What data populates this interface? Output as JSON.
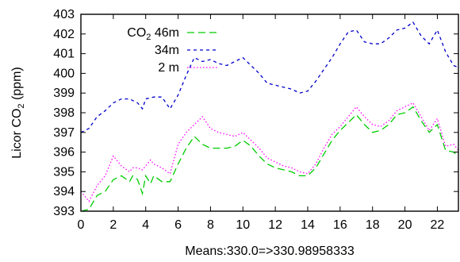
{
  "chart_data": {
    "type": "line",
    "xlabel": "Means:330.0=>330.98958333",
    "ylabel_main": "Licor CO",
    "ylabel_sub": "2",
    "ylabel_unit": " (ppm)",
    "xlim": [
      0,
      23.3
    ],
    "ylim": [
      393,
      403
    ],
    "xticks": [
      0,
      2,
      4,
      6,
      8,
      10,
      12,
      14,
      16,
      18,
      20,
      22
    ],
    "yticks": [
      393,
      394,
      395,
      396,
      397,
      398,
      399,
      400,
      401,
      402,
      403
    ],
    "grid": false,
    "legend_position": "top-left",
    "series": [
      {
        "name": "CO",
        "name_sub": "2",
        "name_rest": " 46m",
        "color": "#00cc00",
        "dash": "long",
        "x": [
          0,
          0.5,
          1,
          1.5,
          2,
          2.5,
          3,
          3.2,
          3.5,
          3.8,
          4,
          4.3,
          4.5,
          5,
          5.5,
          6,
          6.5,
          7,
          7.5,
          8,
          8.5,
          9,
          9.5,
          10,
          10.5,
          11,
          11.5,
          12,
          12.5,
          13,
          13.5,
          14,
          14.5,
          15,
          15.5,
          16,
          16.5,
          17,
          17.5,
          18,
          18.5,
          19,
          19.5,
          20,
          20.5,
          21,
          21.5,
          22,
          22.5,
          23,
          23.3
        ],
        "y": [
          393,
          393.1,
          393.8,
          394,
          394.6,
          394.8,
          394.5,
          394.8,
          394.6,
          393.9,
          394.8,
          394.4,
          394.8,
          394.5,
          394.5,
          395.4,
          396.2,
          396.8,
          396.4,
          396.2,
          396.2,
          396.2,
          396.3,
          396.6,
          396.3,
          395.8,
          395.4,
          395.2,
          395.1,
          395,
          394.8,
          394.8,
          395.2,
          395.9,
          396.6,
          397.1,
          397.5,
          397.9,
          397.4,
          397,
          397.1,
          397.4,
          397.9,
          398,
          398.3,
          397.6,
          397,
          397.4,
          396.1,
          396,
          395.8
        ]
      },
      {
        "name": "34m",
        "color": "#0000cc",
        "dash": "short",
        "x": [
          0,
          0.5,
          1,
          1.5,
          2,
          2.5,
          3,
          3.5,
          3.8,
          4,
          4.5,
          5,
          5.5,
          6,
          6.5,
          7,
          7.5,
          8,
          8.5,
          9,
          9.5,
          10,
          10.5,
          11,
          11.5,
          12,
          12.5,
          13,
          13.5,
          14,
          14.5,
          15,
          15.5,
          16,
          16.5,
          17,
          17.5,
          18,
          18.5,
          19,
          19.5,
          20,
          20.5,
          21,
          21.5,
          22,
          22.5,
          23,
          23.3
        ],
        "y": [
          397,
          397.2,
          397.8,
          398.1,
          398.5,
          398.7,
          398.7,
          398.5,
          398.2,
          398.7,
          398.8,
          398.8,
          398.2,
          398.9,
          399.9,
          400.8,
          400.6,
          400.7,
          400.5,
          400.4,
          400.6,
          400.8,
          400.4,
          400,
          399.5,
          399.4,
          399.3,
          399.2,
          399,
          399.1,
          399.6,
          400.2,
          400.8,
          401.5,
          402.1,
          402.2,
          401.6,
          401.5,
          401.5,
          401.8,
          402.2,
          402.3,
          402.6,
          401.9,
          401.5,
          402.2,
          401.1,
          400.4,
          400.3
        ]
      },
      {
        "name": "2 m",
        "color": "#ff00ff",
        "dash": "dot",
        "x": [
          0,
          0.5,
          1,
          1.5,
          2,
          2.5,
          3,
          3.2,
          3.5,
          3.8,
          4,
          4.3,
          4.5,
          5,
          5.5,
          6,
          6.5,
          7,
          7.5,
          8,
          8.5,
          9,
          9.5,
          10,
          10.5,
          11,
          11.5,
          12,
          12.5,
          13,
          13.5,
          14,
          14.5,
          15,
          15.5,
          16,
          16.5,
          17,
          17.5,
          18,
          18.5,
          19,
          19.5,
          20,
          20.5,
          21,
          21.5,
          22,
          22.5,
          23,
          23.3
        ],
        "y": [
          394,
          393.5,
          394.3,
          394.8,
          395.8,
          395.3,
          395,
          395.2,
          395.2,
          395.1,
          395.3,
          395.6,
          395.4,
          395.2,
          394.9,
          396.4,
          397,
          397.4,
          397.8,
          397.2,
          397,
          396.9,
          396.8,
          397,
          396.6,
          396.2,
          395.7,
          395.5,
          395.3,
          395.2,
          395,
          394.9,
          395.4,
          396.2,
          396.9,
          397.3,
          397.8,
          398.3,
          397.8,
          397.4,
          397.3,
          397.6,
          398.1,
          398.3,
          398.5,
          397.8,
          397.1,
          397.7,
          396.3,
          396.4,
          396.1
        ]
      }
    ]
  }
}
